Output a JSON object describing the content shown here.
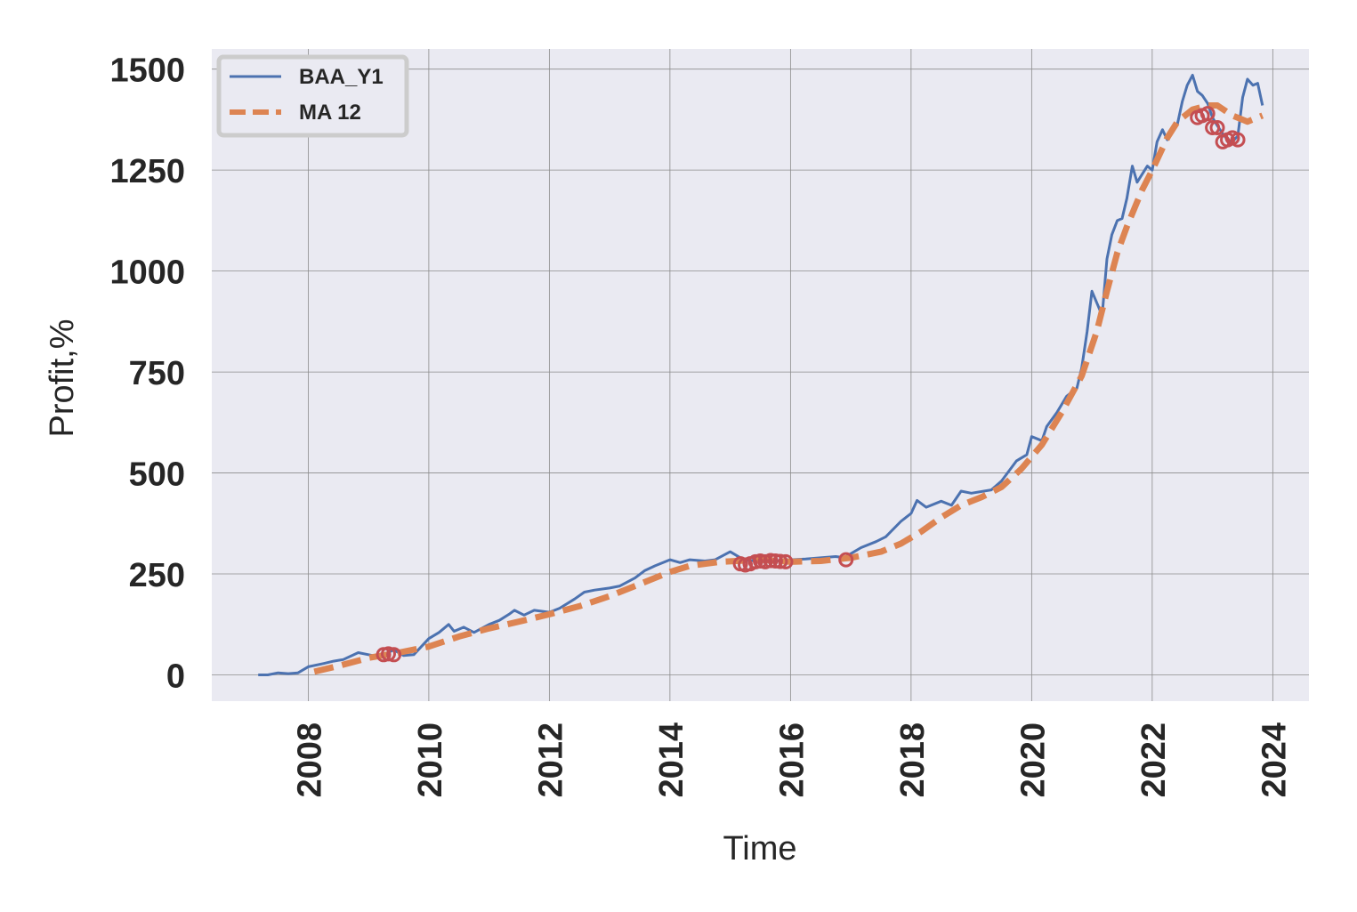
{
  "chart_data": {
    "type": "line",
    "xlabel": "Time",
    "ylabel": "Profit,%",
    "xlim": [
      2006.4,
      2024.6
    ],
    "ylim": [
      -65,
      1550
    ],
    "x_ticks": [
      2008,
      2010,
      2012,
      2014,
      2016,
      2018,
      2020,
      2022,
      2024
    ],
    "y_ticks": [
      0,
      250,
      500,
      750,
      1000,
      1250,
      1500
    ],
    "grid": true,
    "legend_position": "top-left",
    "colors": {
      "background": "#eaeaf2",
      "grid": "#8c8c8c",
      "series_line": "#4c72b0",
      "series_ma": "#dd8452",
      "markers": "#c44e52"
    },
    "series": [
      {
        "name": "BAA_Y1",
        "style": "solid",
        "points": [
          [
            2007.17,
            0
          ],
          [
            2007.33,
            0
          ],
          [
            2007.5,
            5
          ],
          [
            2007.67,
            3
          ],
          [
            2007.83,
            5
          ],
          [
            2008.0,
            20
          ],
          [
            2008.25,
            28
          ],
          [
            2008.42,
            34
          ],
          [
            2008.58,
            38
          ],
          [
            2008.83,
            55
          ],
          [
            2009.0,
            50
          ],
          [
            2009.17,
            45
          ],
          [
            2009.42,
            62
          ],
          [
            2009.58,
            48
          ],
          [
            2009.75,
            50
          ],
          [
            2010.0,
            90
          ],
          [
            2010.17,
            105
          ],
          [
            2010.33,
            125
          ],
          [
            2010.42,
            108
          ],
          [
            2010.58,
            118
          ],
          [
            2010.75,
            105
          ],
          [
            2011.0,
            125
          ],
          [
            2011.17,
            135
          ],
          [
            2011.33,
            150
          ],
          [
            2011.42,
            160
          ],
          [
            2011.58,
            148
          ],
          [
            2011.75,
            160
          ],
          [
            2012.0,
            155
          ],
          [
            2012.17,
            165
          ],
          [
            2012.42,
            188
          ],
          [
            2012.58,
            205
          ],
          [
            2012.75,
            210
          ],
          [
            2013.0,
            215
          ],
          [
            2013.17,
            220
          ],
          [
            2013.42,
            240
          ],
          [
            2013.58,
            258
          ],
          [
            2013.75,
            270
          ],
          [
            2014.0,
            285
          ],
          [
            2014.17,
            278
          ],
          [
            2014.33,
            285
          ],
          [
            2014.58,
            282
          ],
          [
            2014.75,
            285
          ],
          [
            2015.0,
            305
          ],
          [
            2015.17,
            290
          ],
          [
            2015.33,
            282
          ],
          [
            2015.5,
            285
          ],
          [
            2015.75,
            282
          ],
          [
            2016.0,
            285
          ],
          [
            2016.25,
            287
          ],
          [
            2016.5,
            290
          ],
          [
            2016.75,
            293
          ],
          [
            2016.9,
            290
          ],
          [
            2017.0,
            300
          ],
          [
            2017.17,
            315
          ],
          [
            2017.42,
            330
          ],
          [
            2017.58,
            342
          ],
          [
            2017.83,
            380
          ],
          [
            2018.0,
            400
          ],
          [
            2018.1,
            432
          ],
          [
            2018.25,
            415
          ],
          [
            2018.5,
            430
          ],
          [
            2018.67,
            420
          ],
          [
            2018.83,
            455
          ],
          [
            2019.0,
            450
          ],
          [
            2019.33,
            458
          ],
          [
            2019.5,
            480
          ],
          [
            2019.75,
            530
          ],
          [
            2019.92,
            545
          ],
          [
            2020.0,
            590
          ],
          [
            2020.17,
            580
          ],
          [
            2020.25,
            615
          ],
          [
            2020.42,
            650
          ],
          [
            2020.58,
            690
          ],
          [
            2020.75,
            710
          ],
          [
            2020.83,
            760
          ],
          [
            2020.92,
            850
          ],
          [
            2021.0,
            950
          ],
          [
            2021.17,
            890
          ],
          [
            2021.25,
            1030
          ],
          [
            2021.33,
            1090
          ],
          [
            2021.42,
            1125
          ],
          [
            2021.5,
            1130
          ],
          [
            2021.58,
            1180
          ],
          [
            2021.67,
            1260
          ],
          [
            2021.75,
            1220
          ],
          [
            2021.92,
            1260
          ],
          [
            2022.0,
            1250
          ],
          [
            2022.08,
            1320
          ],
          [
            2022.17,
            1350
          ],
          [
            2022.25,
            1325
          ],
          [
            2022.33,
            1355
          ],
          [
            2022.42,
            1365
          ],
          [
            2022.5,
            1420
          ],
          [
            2022.58,
            1460
          ],
          [
            2022.67,
            1485
          ],
          [
            2022.75,
            1445
          ],
          [
            2022.83,
            1435
          ],
          [
            2022.92,
            1415
          ],
          [
            2023.0,
            1380
          ],
          [
            2023.08,
            1360
          ],
          [
            2023.17,
            1340
          ],
          [
            2023.25,
            1325
          ],
          [
            2023.33,
            1320
          ],
          [
            2023.42,
            1335
          ],
          [
            2023.5,
            1430
          ],
          [
            2023.58,
            1475
          ],
          [
            2023.67,
            1460
          ],
          [
            2023.75,
            1465
          ],
          [
            2023.83,
            1410
          ]
        ]
      },
      {
        "name": "MA 12",
        "style": "dashed",
        "points": [
          [
            2008.1,
            8
          ],
          [
            2008.5,
            22
          ],
          [
            2009.0,
            42
          ],
          [
            2009.5,
            55
          ],
          [
            2010.0,
            70
          ],
          [
            2010.5,
            95
          ],
          [
            2011.0,
            115
          ],
          [
            2011.5,
            132
          ],
          [
            2012.0,
            150
          ],
          [
            2012.5,
            170
          ],
          [
            2013.0,
            195
          ],
          [
            2013.5,
            225
          ],
          [
            2014.0,
            255
          ],
          [
            2014.33,
            270
          ],
          [
            2014.83,
            280
          ],
          [
            2015.5,
            285
          ],
          [
            2016.0,
            280
          ],
          [
            2016.5,
            282
          ],
          [
            2017.0,
            290
          ],
          [
            2017.5,
            305
          ],
          [
            2017.83,
            325
          ],
          [
            2018.17,
            355
          ],
          [
            2018.5,
            390
          ],
          [
            2018.83,
            420
          ],
          [
            2019.17,
            440
          ],
          [
            2019.5,
            465
          ],
          [
            2019.83,
            510
          ],
          [
            2020.17,
            570
          ],
          [
            2020.5,
            650
          ],
          [
            2020.83,
            740
          ],
          [
            2021.08,
            850
          ],
          [
            2021.25,
            950
          ],
          [
            2021.42,
            1045
          ],
          [
            2021.58,
            1110
          ],
          [
            2021.83,
            1200
          ],
          [
            2022.0,
            1250
          ],
          [
            2022.25,
            1330
          ],
          [
            2022.42,
            1370
          ],
          [
            2022.67,
            1400
          ],
          [
            2022.92,
            1410
          ],
          [
            2023.08,
            1410
          ],
          [
            2023.33,
            1385
          ],
          [
            2023.58,
            1370
          ],
          [
            2023.83,
            1385
          ]
        ]
      }
    ],
    "markers": [
      [
        2009.25,
        50
      ],
      [
        2009.33,
        52
      ],
      [
        2009.42,
        50
      ],
      [
        2015.17,
        275
      ],
      [
        2015.25,
        272
      ],
      [
        2015.33,
        275
      ],
      [
        2015.42,
        280
      ],
      [
        2015.5,
        282
      ],
      [
        2015.58,
        280
      ],
      [
        2015.67,
        283
      ],
      [
        2015.75,
        282
      ],
      [
        2015.83,
        281
      ],
      [
        2015.92,
        280
      ],
      [
        2016.92,
        285
      ],
      [
        2022.75,
        1380
      ],
      [
        2022.83,
        1385
      ],
      [
        2022.92,
        1390
      ],
      [
        2023.0,
        1355
      ],
      [
        2023.08,
        1355
      ],
      [
        2023.17,
        1320
      ],
      [
        2023.25,
        1325
      ],
      [
        2023.33,
        1330
      ],
      [
        2023.42,
        1325
      ]
    ]
  }
}
